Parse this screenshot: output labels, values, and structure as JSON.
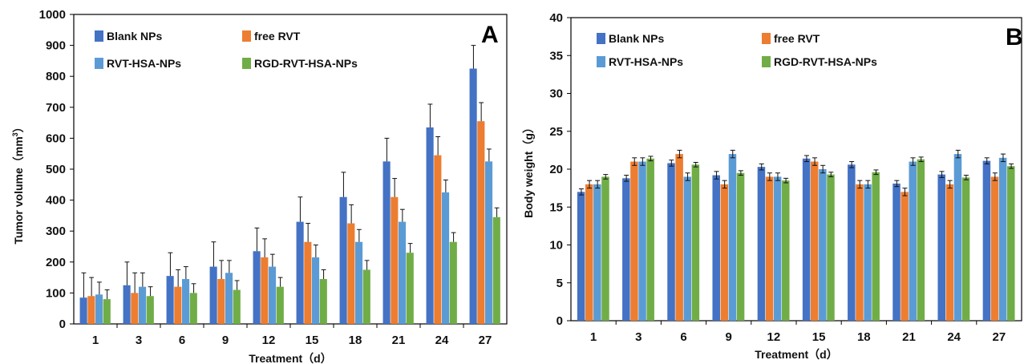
{
  "chart_data": [
    {
      "type": "bar",
      "panel_label": "A",
      "categories": [
        "1",
        "3",
        "6",
        "9",
        "12",
        "15",
        "18",
        "21",
        "24",
        "27"
      ],
      "xlabel": "Treatment（d）",
      "ylabel_prefix": "Tumor volume（mm",
      "ylabel_sup": "3",
      "ylabel_suffix": "）",
      "ylim": [
        0,
        1000
      ],
      "yticks": [
        0,
        100,
        200,
        300,
        400,
        500,
        600,
        700,
        800,
        900,
        1000
      ],
      "grid": false,
      "legend_position": "top-left",
      "error_bars": "upper",
      "series": [
        {
          "name": "Blank NPs",
          "color": "#4472C4",
          "values": [
            85,
            125,
            155,
            185,
            235,
            330,
            410,
            525,
            635,
            825
          ],
          "errors": [
            80,
            75,
            75,
            80,
            75,
            80,
            80,
            75,
            75,
            75
          ]
        },
        {
          "name": "free RVT",
          "color": "#ED7D31",
          "values": [
            90,
            100,
            120,
            145,
            215,
            265,
            325,
            410,
            545,
            655
          ],
          "errors": [
            60,
            65,
            55,
            60,
            60,
            60,
            60,
            60,
            60,
            60
          ]
        },
        {
          "name": "RVT-HSA-NPs",
          "color": "#5B9BD5",
          "values": [
            95,
            120,
            145,
            165,
            185,
            215,
            265,
            330,
            425,
            525
          ],
          "errors": [
            40,
            45,
            40,
            40,
            40,
            40,
            40,
            40,
            40,
            40
          ]
        },
        {
          "name": "RGD-RVT-HSA-NPs",
          "color": "#70AD47",
          "values": [
            80,
            90,
            100,
            110,
            120,
            145,
            175,
            230,
            265,
            345
          ],
          "errors": [
            30,
            30,
            30,
            30,
            30,
            30,
            30,
            30,
            30,
            30
          ]
        }
      ]
    },
    {
      "type": "bar",
      "panel_label": "B",
      "categories": [
        "1",
        "3",
        "6",
        "9",
        "12",
        "15",
        "18",
        "21",
        "24",
        "27"
      ],
      "xlabel": "Treatment（d）",
      "ylabel": "Body weight（g）",
      "ylim": [
        0,
        40
      ],
      "yticks": [
        0,
        5,
        10,
        15,
        20,
        25,
        30,
        35,
        40
      ],
      "grid": false,
      "legend_position": "top-left",
      "error_bars": "both",
      "series": [
        {
          "name": "Blank NPs",
          "color": "#4472C4",
          "values": [
            17.0,
            18.8,
            20.8,
            19.2,
            20.3,
            21.4,
            20.6,
            18.1,
            19.3,
            21.1
          ],
          "errors": [
            0.4,
            0.4,
            0.4,
            0.5,
            0.4,
            0.4,
            0.4,
            0.4,
            0.4,
            0.4
          ]
        },
        {
          "name": "free RVT",
          "color": "#ED7D31",
          "values": [
            18.0,
            21.0,
            22.0,
            18.0,
            19.0,
            21.0,
            18.0,
            17.0,
            18.0,
            19.0
          ],
          "errors": [
            0.5,
            0.5,
            0.5,
            0.5,
            0.5,
            0.5,
            0.5,
            0.5,
            0.5,
            0.5
          ]
        },
        {
          "name": "RVT-HSA-NPs",
          "color": "#5B9BD5",
          "values": [
            18.0,
            21.0,
            19.0,
            22.0,
            19.0,
            20.0,
            18.0,
            21.0,
            22.0,
            21.5
          ],
          "errors": [
            0.5,
            0.5,
            0.5,
            0.5,
            0.5,
            0.5,
            0.5,
            0.5,
            0.5,
            0.5
          ]
        },
        {
          "name": "RGD-RVT-HSA-NPs",
          "color": "#70AD47",
          "values": [
            19.0,
            21.4,
            20.6,
            19.5,
            18.5,
            19.3,
            19.6,
            21.3,
            18.9,
            20.4
          ],
          "errors": [
            0.3,
            0.3,
            0.3,
            0.3,
            0.3,
            0.3,
            0.3,
            0.3,
            0.3,
            0.3
          ]
        }
      ]
    }
  ]
}
